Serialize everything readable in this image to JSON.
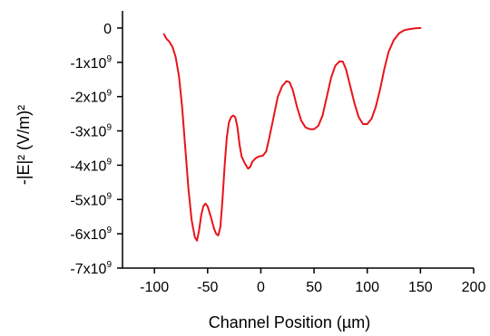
{
  "chart_data": {
    "type": "line",
    "xlabel": "Channel Position (µm)",
    "ylabel": "-|E|² (V/m)²",
    "xlim": [
      -130,
      200
    ],
    "ylim": [
      -7000000000,
      500000000
    ],
    "x_ticks": [
      -100,
      -50,
      0,
      50,
      100,
      150,
      200
    ],
    "x_tick_labels": [
      "-100",
      "-50",
      "0",
      "50",
      "100",
      "150",
      "200"
    ],
    "y_ticks": [
      {
        "value": 0,
        "mantissa": "0",
        "exponent": ""
      },
      {
        "value": -1000000000,
        "mantissa": "-1x10",
        "exponent": "9"
      },
      {
        "value": -2000000000,
        "mantissa": "-2x10",
        "exponent": "9"
      },
      {
        "value": -3000000000,
        "mantissa": "-3x10",
        "exponent": "9"
      },
      {
        "value": -4000000000,
        "mantissa": "-4x10",
        "exponent": "9"
      },
      {
        "value": -5000000000,
        "mantissa": "-5x10",
        "exponent": "9"
      },
      {
        "value": -6000000000,
        "mantissa": "-6x10",
        "exponent": "9"
      },
      {
        "value": -7000000000,
        "mantissa": "-7x10",
        "exponent": "9"
      }
    ],
    "grid": false,
    "series": [
      {
        "color": "#e8141b",
        "points": [
          [
            -91,
            -180000000.0
          ],
          [
            -89,
            -300000000.0
          ],
          [
            -86,
            -400000000.0
          ],
          [
            -83,
            -550000000.0
          ],
          [
            -80,
            -850000000.0
          ],
          [
            -77,
            -1400000000.0
          ],
          [
            -74,
            -2300000000.0
          ],
          [
            -71,
            -3500000000.0
          ],
          [
            -68,
            -4700000000.0
          ],
          [
            -65,
            -5600000000.0
          ],
          [
            -62,
            -6100000000.0
          ],
          [
            -60,
            -6200000000.0
          ],
          [
            -58,
            -5900000000.0
          ],
          [
            -56,
            -5450000000.0
          ],
          [
            -54,
            -5200000000.0
          ],
          [
            -52,
            -5120000000.0
          ],
          [
            -50,
            -5200000000.0
          ],
          [
            -47,
            -5500000000.0
          ],
          [
            -44,
            -5850000000.0
          ],
          [
            -42,
            -6000000000.0
          ],
          [
            -40,
            -6050000000.0
          ],
          [
            -38,
            -5800000000.0
          ],
          [
            -36,
            -5000000000.0
          ],
          [
            -34,
            -4000000000.0
          ],
          [
            -32,
            -3200000000.0
          ],
          [
            -30,
            -2750000000.0
          ],
          [
            -28,
            -2600000000.0
          ],
          [
            -26,
            -2550000000.0
          ],
          [
            -24,
            -2600000000.0
          ],
          [
            -22,
            -2900000000.0
          ],
          [
            -20,
            -3400000000.0
          ],
          [
            -18,
            -3750000000.0
          ],
          [
            -15,
            -3950000000.0
          ],
          [
            -12,
            -4100000000.0
          ],
          [
            -10,
            -4050000000.0
          ],
          [
            -8,
            -3900000000.0
          ],
          [
            -5,
            -3800000000.0
          ],
          [
            -2,
            -3750000000.0
          ],
          [
            2,
            -3720000000.0
          ],
          [
            5,
            -3600000000.0
          ],
          [
            8,
            -3200000000.0
          ],
          [
            12,
            -2600000000.0
          ],
          [
            16,
            -2000000000.0
          ],
          [
            20,
            -1700000000.0
          ],
          [
            24,
            -1550000000.0
          ],
          [
            27,
            -1580000000.0
          ],
          [
            30,
            -1800000000.0
          ],
          [
            34,
            -2300000000.0
          ],
          [
            38,
            -2700000000.0
          ],
          [
            42,
            -2900000000.0
          ],
          [
            46,
            -2950000000.0
          ],
          [
            50,
            -2950000000.0
          ],
          [
            54,
            -2850000000.0
          ],
          [
            58,
            -2550000000.0
          ],
          [
            62,
            -2000000000.0
          ],
          [
            66,
            -1450000000.0
          ],
          [
            70,
            -1100000000.0
          ],
          [
            74,
            -970000000.0
          ],
          [
            77,
            -980000000.0
          ],
          [
            80,
            -1200000000.0
          ],
          [
            84,
            -1700000000.0
          ],
          [
            88,
            -2200000000.0
          ],
          [
            92,
            -2600000000.0
          ],
          [
            96,
            -2800000000.0
          ],
          [
            100,
            -2800000000.0
          ],
          [
            104,
            -2650000000.0
          ],
          [
            108,
            -2300000000.0
          ],
          [
            112,
            -1800000000.0
          ],
          [
            116,
            -1200000000.0
          ],
          [
            120,
            -700000000.0
          ],
          [
            125,
            -350000000.0
          ],
          [
            130,
            -150000000.0
          ],
          [
            135,
            -60000000.0
          ],
          [
            140,
            -30000000.0
          ],
          [
            145,
            -10000000.0
          ],
          [
            150,
            0
          ]
        ]
      }
    ]
  }
}
